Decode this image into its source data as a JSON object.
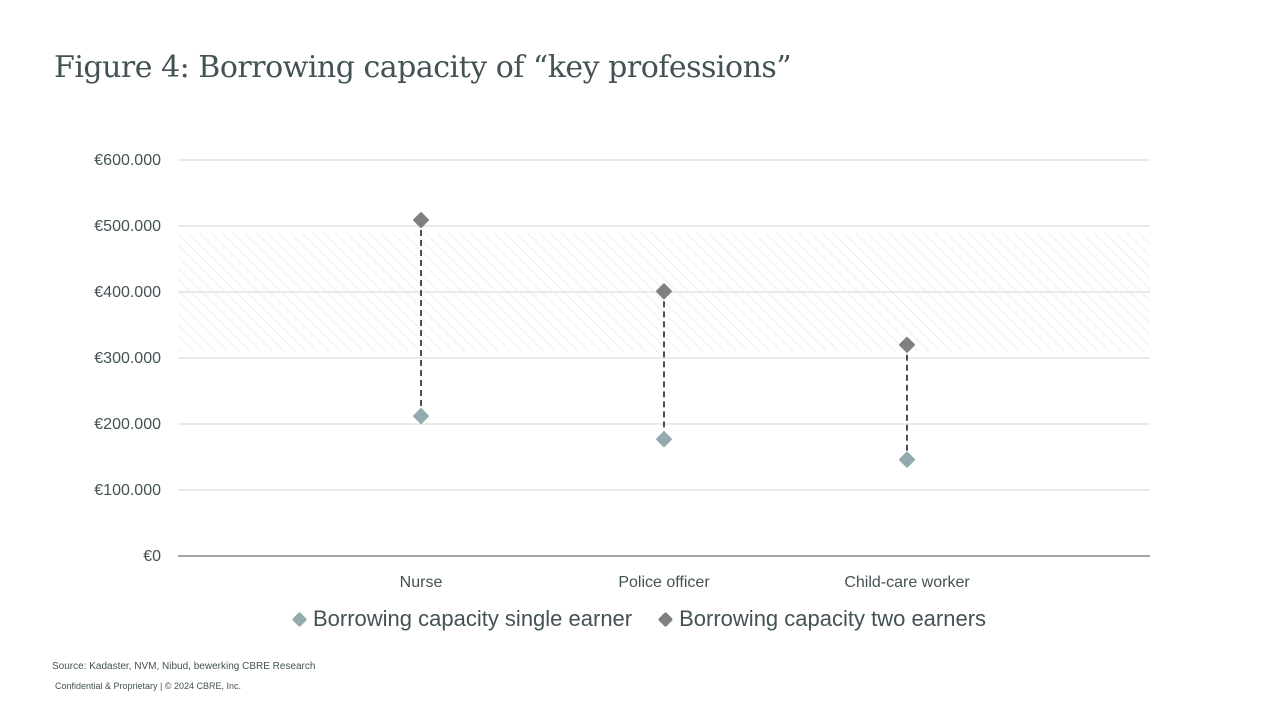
{
  "page": {
    "title": "Figure 4: Borrowing capacity of “key professions”"
  },
  "chart_data": {
    "type": "scatter",
    "title": "Figure 4: Borrowing capacity of “key professions”",
    "xlabel": "",
    "ylabel": "",
    "categories": [
      "Nurse",
      "Police officer",
      "Child-care worker"
    ],
    "series": [
      {
        "name": "Borrowing capacity single earner",
        "values": [
          212000,
          177000,
          146000
        ],
        "color": "#93abae"
      },
      {
        "name": "Borrowing capacity two earners",
        "values": [
          509000,
          401000,
          320000
        ],
        "color": "#7f8180"
      }
    ],
    "ylim": [
      0,
      600000
    ],
    "yticks": [
      0,
      100000,
      200000,
      300000,
      400000,
      500000,
      600000
    ],
    "ytick_labels": [
      "€0",
      "€100.000",
      "€200.000",
      "€300.000",
      "€400.000",
      "€500.000",
      "€600.000"
    ],
    "shaded_band": [
      310000,
      490000
    ],
    "connector": "dashed",
    "grid": true,
    "legend_position": "bottom"
  },
  "footer": {
    "source": "Source: Kadaster, NVM, Nibud, bewerking CBRE Research",
    "confidential": "Confidential & Proprietary | © 2024 CBRE, Inc."
  }
}
